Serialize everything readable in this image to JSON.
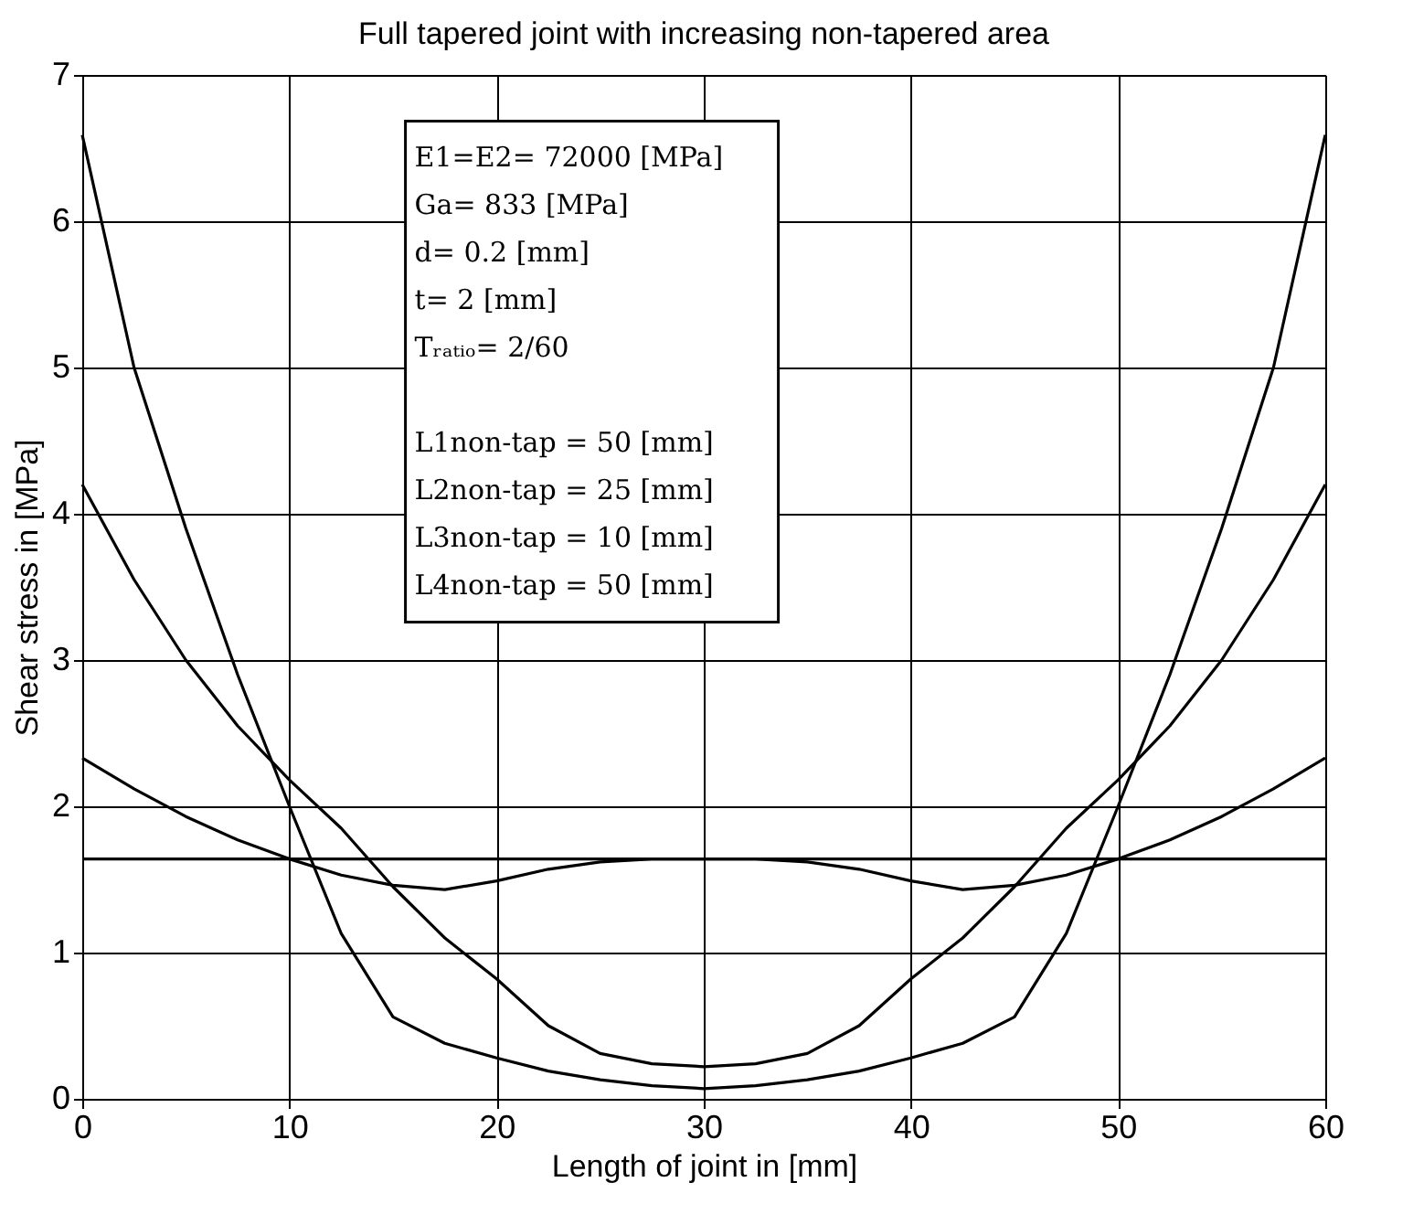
{
  "chart_data": {
    "type": "line",
    "title": "Full tapered joint with increasing non-tapered area",
    "xlabel": "Length of joint in [mm]",
    "ylabel": "Shear stress in [MPa]",
    "x": [
      0,
      2.5,
      5,
      7.5,
      10,
      12.5,
      15,
      17.5,
      20,
      22.5,
      25,
      27.5,
      30,
      32.5,
      35,
      37.5,
      40,
      42.5,
      45,
      47.5,
      50,
      52.5,
      55,
      57.5,
      60
    ],
    "series": [
      {
        "color": "#000000",
        "values": [
          6.59,
          5.0,
          3.9,
          2.9,
          2.0,
          1.13,
          0.56,
          0.38,
          0.28,
          0.19,
          0.13,
          0.09,
          0.07,
          0.09,
          0.13,
          0.19,
          0.28,
          0.38,
          0.56,
          1.13,
          2.0,
          2.9,
          3.9,
          5.0,
          6.59
        ]
      },
      {
        "color": "#000000",
        "values": [
          4.2,
          3.55,
          3.0,
          2.55,
          2.18,
          1.85,
          1.45,
          1.1,
          0.82,
          0.5,
          0.31,
          0.24,
          0.22,
          0.24,
          0.31,
          0.5,
          0.82,
          1.1,
          1.45,
          1.85,
          2.18,
          2.55,
          3.0,
          3.55,
          4.2
        ]
      },
      {
        "color": "#000000",
        "values": [
          2.33,
          2.12,
          1.93,
          1.77,
          1.64,
          1.53,
          1.46,
          1.43,
          1.49,
          1.57,
          1.62,
          1.64,
          1.64,
          1.64,
          1.62,
          1.57,
          1.49,
          1.43,
          1.46,
          1.53,
          1.64,
          1.77,
          1.93,
          2.12,
          2.33
        ]
      },
      {
        "color": "#000000",
        "values": [
          1.64,
          1.64,
          1.64,
          1.64,
          1.64,
          1.64,
          1.64,
          1.64,
          1.64,
          1.64,
          1.64,
          1.64,
          1.64,
          1.64,
          1.64,
          1.64,
          1.64,
          1.64,
          1.64,
          1.64,
          1.64,
          1.64,
          1.64,
          1.64,
          1.64
        ]
      }
    ],
    "xlim": [
      0,
      60
    ],
    "xticks": [
      0,
      10,
      20,
      30,
      40,
      50,
      60
    ],
    "ylim": [
      0,
      7
    ],
    "yticks": [
      0,
      1,
      2,
      3,
      4,
      5,
      6,
      7
    ],
    "grid": true,
    "marker": "none",
    "line_style": "solid",
    "annotations": [
      "E1=E2= 72000 [MPa]",
      "Ga= 833 [MPa]",
      "d= 0.2 [mm]",
      "t= 2 [mm]",
      "Tᵣₐₜᵢₒ= 2/60",
      "L1non-tap = 50 [mm]",
      "L2non-tap = 25 [mm]",
      "L3non-tap = 10 [mm]",
      "L4non-tap = 50 [mm]"
    ]
  }
}
